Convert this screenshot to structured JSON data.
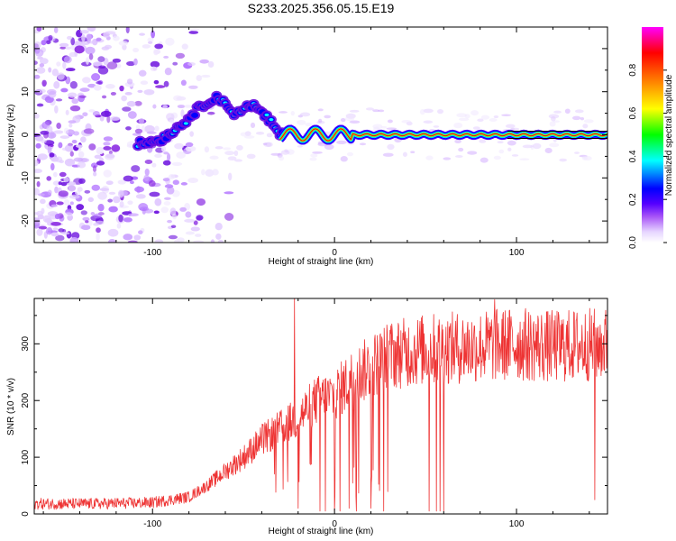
{
  "title": "S233.2025.356.05.15.E19",
  "colors": {
    "snr_line": "#ee3333",
    "axis": "#000000",
    "core_ridge": "#d81818"
  },
  "chart_data": [
    {
      "type": "heatmap",
      "title": "S233.2025.356.05.15.E19",
      "xlabel": "Height of straight line (km)",
      "ylabel": "Frequency (Hz)",
      "xlim": [
        -165,
        150
      ],
      "ylim": [
        -25,
        25
      ],
      "x_ticks": [
        -100,
        0,
        100
      ],
      "x_tick_labels": [
        "-100",
        "0",
        "100"
      ],
      "y_ticks": [
        -20,
        -10,
        0,
        10,
        20
      ],
      "y_tick_labels": [
        "-20",
        "-10",
        "0",
        "10",
        "20"
      ],
      "colorbar": {
        "label": "Normalized spectral amplitude",
        "range": [
          0,
          1
        ],
        "ticks": [
          0,
          0.2,
          0.4,
          0.6,
          0.8
        ],
        "tick_labels": [
          "0.0",
          "0.2",
          "0.4",
          "0.6",
          "0.8"
        ],
        "colormap": [
          "#ffffff",
          "#a855f7",
          "#5500ff",
          "#0000ff",
          "#00ffff",
          "#00ff00",
          "#ffff00",
          "#ff7f00",
          "#ff0000",
          "#ff00ff"
        ]
      },
      "ridge": {
        "description": "dominant spectral line",
        "x": [
          -105,
          -95,
          -85,
          -75,
          -65,
          -55,
          -45,
          -35,
          -30,
          -20,
          -10,
          0,
          10,
          20,
          50,
          100,
          150
        ],
        "y": [
          -2,
          -1,
          2,
          6,
          9,
          5,
          7,
          3,
          0,
          0,
          0,
          0,
          0,
          0,
          0,
          0,
          0
        ]
      },
      "noise_region": {
        "x_from": -165,
        "x_to": -80,
        "frequency_span": [
          -25,
          25
        ]
      }
    },
    {
      "type": "line",
      "xlabel": "Height of straight line (km)",
      "ylabel": "SNR (10 * v/v)",
      "xlim": [
        -165,
        150
      ],
      "ylim": [
        0,
        380
      ],
      "x_ticks": [
        -100,
        0,
        100
      ],
      "x_tick_labels": [
        "-100",
        "0",
        "100"
      ],
      "y_ticks": [
        0,
        100,
        200,
        300
      ],
      "y_tick_labels": [
        "0",
        "100",
        "200",
        "300"
      ],
      "series": [
        {
          "name": "SNR",
          "envelope_x": [
            -165,
            -130,
            -100,
            -80,
            -70,
            -60,
            -50,
            -40,
            -30,
            -20,
            -10,
            0,
            10,
            20,
            30,
            50,
            80,
            100,
            120,
            150
          ],
          "envelope_y": [
            18,
            18,
            20,
            30,
            50,
            75,
            100,
            130,
            150,
            170,
            200,
            210,
            240,
            260,
            280,
            290,
            295,
            300,
            295,
            300
          ],
          "spikes": [
            {
              "x": -22,
              "y": 380
            },
            {
              "x": 88,
              "y": 378
            },
            {
              "x": 145,
              "y": 330
            }
          ],
          "dropouts": [
            {
              "x": -20,
              "y": 10
            },
            {
              "x": -8,
              "y": 5
            },
            {
              "x": -5,
              "y": 5
            },
            {
              "x": 0,
              "y": 5
            },
            {
              "x": 3,
              "y": 5
            },
            {
              "x": 8,
              "y": 10
            },
            {
              "x": 12,
              "y": 5
            },
            {
              "x": 20,
              "y": 10
            },
            {
              "x": 27,
              "y": 5
            },
            {
              "x": 52,
              "y": 5
            },
            {
              "x": 56,
              "y": 5
            },
            {
              "x": 58,
              "y": 5
            },
            {
              "x": 60,
              "y": 5
            },
            {
              "x": 143,
              "y": 25
            }
          ]
        }
      ]
    }
  ]
}
